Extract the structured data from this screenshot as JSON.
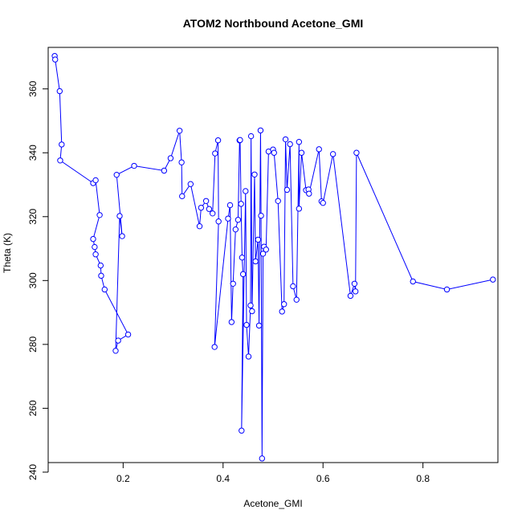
{
  "chart_data": {
    "type": "line",
    "title": "ATOM2 Northbound Acetone_GMI",
    "xlabel": "Acetone_GMI",
    "ylabel": "Theta (K)",
    "xlim": [
      0.05,
      0.95
    ],
    "ylim": [
      243,
      373
    ],
    "xticks": [
      0.2,
      0.4,
      0.6,
      0.8
    ],
    "yticks": [
      240,
      260,
      280,
      300,
      320,
      340,
      360
    ],
    "grid": false,
    "legend": "none",
    "series": [
      {
        "color": "#0000ff",
        "marker": "open-circle",
        "points": [
          [
            0.063,
            370.3
          ],
          [
            0.064,
            369.2
          ],
          [
            0.073,
            359.3
          ],
          [
            0.077,
            342.6
          ],
          [
            0.074,
            337.6
          ],
          [
            0.14,
            330.5
          ],
          [
            0.145,
            331.4
          ],
          [
            0.153,
            320.5
          ],
          [
            0.14,
            313.0
          ],
          [
            0.143,
            310.5
          ],
          [
            0.145,
            308.2
          ],
          [
            0.155,
            304.7
          ],
          [
            0.156,
            301.5
          ],
          [
            0.163,
            297.2
          ],
          [
            0.21,
            283.1
          ],
          [
            0.19,
            281.2
          ],
          [
            0.185,
            278.0
          ],
          [
            0.193,
            320.2
          ],
          [
            0.198,
            313.9
          ],
          [
            0.187,
            333.1
          ],
          [
            0.222,
            335.9
          ],
          [
            0.282,
            334.4
          ],
          [
            0.295,
            338.3
          ],
          [
            0.313,
            346.9
          ],
          [
            0.317,
            337.0
          ],
          [
            0.318,
            326.4
          ],
          [
            0.335,
            330.2
          ],
          [
            0.353,
            317.0
          ],
          [
            0.356,
            322.8
          ],
          [
            0.366,
            324.9
          ],
          [
            0.372,
            322.4
          ],
          [
            0.379,
            321.0
          ],
          [
            0.384,
            339.8
          ],
          [
            0.39,
            343.9
          ],
          [
            0.391,
            318.5
          ],
          [
            0.383,
            279.2
          ],
          [
            0.41,
            319.4
          ],
          [
            0.414,
            323.6
          ],
          [
            0.417,
            287.0
          ],
          [
            0.42,
            299.0
          ],
          [
            0.425,
            316.0
          ],
          [
            0.43,
            319.0
          ],
          [
            0.433,
            343.9
          ],
          [
            0.434,
            344.0
          ],
          [
            0.436,
            324.0
          ],
          [
            0.438,
            307.2
          ],
          [
            0.44,
            302.0
          ],
          [
            0.437,
            253.0
          ],
          [
            0.445,
            328.0
          ],
          [
            0.447,
            286.1
          ],
          [
            0.451,
            276.2
          ],
          [
            0.455,
            292.2
          ],
          [
            0.456,
            345.2
          ],
          [
            0.458,
            290.4
          ],
          [
            0.463,
            333.2
          ],
          [
            0.465,
            306.0
          ],
          [
            0.47,
            312.8
          ],
          [
            0.472,
            285.9
          ],
          [
            0.475,
            347.0
          ],
          [
            0.476,
            320.3
          ],
          [
            0.478,
            244.3
          ],
          [
            0.48,
            308.4
          ],
          [
            0.482,
            310.6
          ],
          [
            0.486,
            309.7
          ],
          [
            0.491,
            340.4
          ],
          [
            0.5,
            341.0
          ],
          [
            0.502,
            340.0
          ],
          [
            0.51,
            324.9
          ],
          [
            0.518,
            290.3
          ],
          [
            0.522,
            292.6
          ],
          [
            0.525,
            344.2
          ],
          [
            0.528,
            328.4
          ],
          [
            0.534,
            342.7
          ],
          [
            0.54,
            298.2
          ],
          [
            0.547,
            294.0
          ],
          [
            0.552,
            343.4
          ],
          [
            0.552,
            322.5
          ],
          [
            0.557,
            340.0
          ],
          [
            0.566,
            328.3
          ],
          [
            0.571,
            328.5
          ],
          [
            0.572,
            327.2
          ],
          [
            0.592,
            341.1
          ],
          [
            0.597,
            324.8
          ],
          [
            0.6,
            324.3
          ],
          [
            0.62,
            339.6
          ],
          [
            0.655,
            295.2
          ],
          [
            0.663,
            299.0
          ],
          [
            0.665,
            296.6
          ],
          [
            0.667,
            340.0
          ],
          [
            0.78,
            299.7
          ],
          [
            0.848,
            297.2
          ],
          [
            0.94,
            300.3
          ]
        ]
      }
    ]
  }
}
